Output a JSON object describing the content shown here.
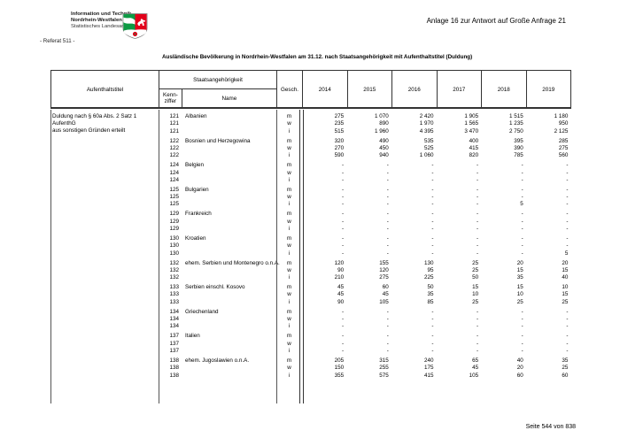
{
  "header": {
    "org_lines": [
      "Information und Technik",
      "Nordrhein-Westfalen",
      "Statistisches Landesamt"
    ],
    "referat": "- Referat 511 -",
    "anlage": "Anlage 16 zur Antwort auf Große Anfrage 21",
    "logo_icon": "nrw-coat-of-arms",
    "logo_colors": {
      "green": "#0d9a44",
      "red": "#e2001a",
      "white": "#ffffff"
    }
  },
  "table": {
    "title": "Ausländische Bevölkerung in Nordrhein-Westfalen am 31.12. nach Staatsangehörigkeit mit Aufenthaltstitel (Duldung)",
    "headers": {
      "aufenthaltstitel": "Aufenthaltstitel",
      "staatsangehoerigkeit": "Staatsangehörigkeit",
      "kennziffer_line1": "Kenn-",
      "kennziffer_line2": "ziffer",
      "name": "Name",
      "gesch": "Gesch.",
      "years": [
        "2014",
        "2015",
        "2016",
        "2017",
        "2018",
        "2019"
      ]
    },
    "aufenthaltstitel_value": {
      "line1": "Duldung nach § 60a Abs. 2 Satz 1 AufenthG",
      "line2": "aus sonstigen Gründen erteilt"
    },
    "groups": [
      {
        "kennziffer": "121",
        "name": "Albanien",
        "rows": [
          {
            "gesch": "m",
            "values": [
              "275",
              "1 070",
              "2 420",
              "1 905",
              "1 515",
              "1 180"
            ]
          },
          {
            "gesch": "w",
            "values": [
              "235",
              "890",
              "1 970",
              "1 565",
              "1 235",
              "950"
            ]
          },
          {
            "gesch": "i",
            "values": [
              "515",
              "1 960",
              "4 395",
              "3 470",
              "2 750",
              "2 125"
            ]
          }
        ]
      },
      {
        "kennziffer": "122",
        "name": "Bosnien und Herzegowina",
        "rows": [
          {
            "gesch": "m",
            "values": [
              "320",
              "490",
              "535",
              "400",
              "395",
              "285"
            ]
          },
          {
            "gesch": "w",
            "values": [
              "270",
              "450",
              "525",
              "415",
              "390",
              "275"
            ]
          },
          {
            "gesch": "i",
            "values": [
              "590",
              "940",
              "1 060",
              "820",
              "785",
              "560"
            ]
          }
        ]
      },
      {
        "kennziffer": "124",
        "name": "Belgien",
        "rows": [
          {
            "gesch": "m",
            "values": [
              "-",
              "-",
              "-",
              "-",
              "-",
              "-"
            ]
          },
          {
            "gesch": "w",
            "values": [
              "-",
              "-",
              "-",
              "-",
              "-",
              "-"
            ]
          },
          {
            "gesch": "i",
            "values": [
              "-",
              "-",
              "-",
              "-",
              "-",
              "-"
            ]
          }
        ]
      },
      {
        "kennziffer": "125",
        "name": "Bulgarien",
        "rows": [
          {
            "gesch": "m",
            "values": [
              "-",
              "-",
              "-",
              "-",
              "-",
              "-"
            ]
          },
          {
            "gesch": "w",
            "values": [
              "-",
              "-",
              "-",
              "-",
              "-",
              "-"
            ]
          },
          {
            "gesch": "i",
            "values": [
              "-",
              "-",
              "-",
              "-",
              "5",
              "-"
            ]
          }
        ]
      },
      {
        "kennziffer": "129",
        "name": "Frankreich",
        "rows": [
          {
            "gesch": "m",
            "values": [
              "-",
              "-",
              "-",
              "-",
              "-",
              "-"
            ]
          },
          {
            "gesch": "w",
            "values": [
              "-",
              "-",
              "-",
              "-",
              "-",
              "-"
            ]
          },
          {
            "gesch": "i",
            "values": [
              "-",
              "-",
              "-",
              "-",
              "-",
              "-"
            ]
          }
        ]
      },
      {
        "kennziffer": "130",
        "name": "Kroatien",
        "rows": [
          {
            "gesch": "m",
            "values": [
              "-",
              "-",
              "-",
              "-",
              "-",
              "-"
            ]
          },
          {
            "gesch": "w",
            "values": [
              "-",
              "-",
              "-",
              "-",
              "-",
              "-"
            ]
          },
          {
            "gesch": "i",
            "values": [
              "-",
              "-",
              "-",
              "-",
              "-",
              "5"
            ]
          }
        ]
      },
      {
        "kennziffer": "132",
        "name": "ehem. Serbien und Montenegro o.n.A.",
        "rows": [
          {
            "gesch": "m",
            "values": [
              "120",
              "155",
              "130",
              "25",
              "20",
              "20"
            ]
          },
          {
            "gesch": "w",
            "values": [
              "90",
              "120",
              "95",
              "25",
              "15",
              "15"
            ]
          },
          {
            "gesch": "i",
            "values": [
              "210",
              "275",
              "225",
              "50",
              "35",
              "40"
            ]
          }
        ]
      },
      {
        "kennziffer": "133",
        "name": "Serbien einschl. Kosovo",
        "rows": [
          {
            "gesch": "m",
            "values": [
              "45",
              "60",
              "50",
              "15",
              "15",
              "10"
            ]
          },
          {
            "gesch": "w",
            "values": [
              "45",
              "45",
              "35",
              "10",
              "10",
              "15"
            ]
          },
          {
            "gesch": "i",
            "values": [
              "90",
              "105",
              "85",
              "25",
              "25",
              "25"
            ]
          }
        ]
      },
      {
        "kennziffer": "134",
        "name": "Griechenland",
        "rows": [
          {
            "gesch": "m",
            "values": [
              "-",
              "-",
              "-",
              "-",
              "-",
              "-"
            ]
          },
          {
            "gesch": "w",
            "values": [
              "-",
              "-",
              "-",
              "-",
              "-",
              "-"
            ]
          },
          {
            "gesch": "i",
            "values": [
              "-",
              "-",
              "-",
              "-",
              "-",
              "-"
            ]
          }
        ]
      },
      {
        "kennziffer": "137",
        "name": "Italien",
        "rows": [
          {
            "gesch": "m",
            "values": [
              "-",
              "-",
              "-",
              "-",
              "-",
              "-"
            ]
          },
          {
            "gesch": "w",
            "values": [
              "-",
              "-",
              "-",
              "-",
              "-",
              "-"
            ]
          },
          {
            "gesch": "i",
            "values": [
              "-",
              "-",
              "-",
              "-",
              "-",
              "-"
            ]
          }
        ]
      },
      {
        "kennziffer": "138",
        "name": "ehem. Jugoslawien o.n.A.",
        "rows": [
          {
            "gesch": "m",
            "values": [
              "205",
              "315",
              "240",
              "65",
              "40",
              "35"
            ]
          },
          {
            "gesch": "w",
            "values": [
              "150",
              "255",
              "175",
              "45",
              "20",
              "25"
            ]
          },
          {
            "gesch": "i",
            "values": [
              "355",
              "575",
              "415",
              "105",
              "60",
              "60"
            ]
          }
        ]
      }
    ]
  },
  "footer": {
    "page": "Seite 544 von 838"
  }
}
